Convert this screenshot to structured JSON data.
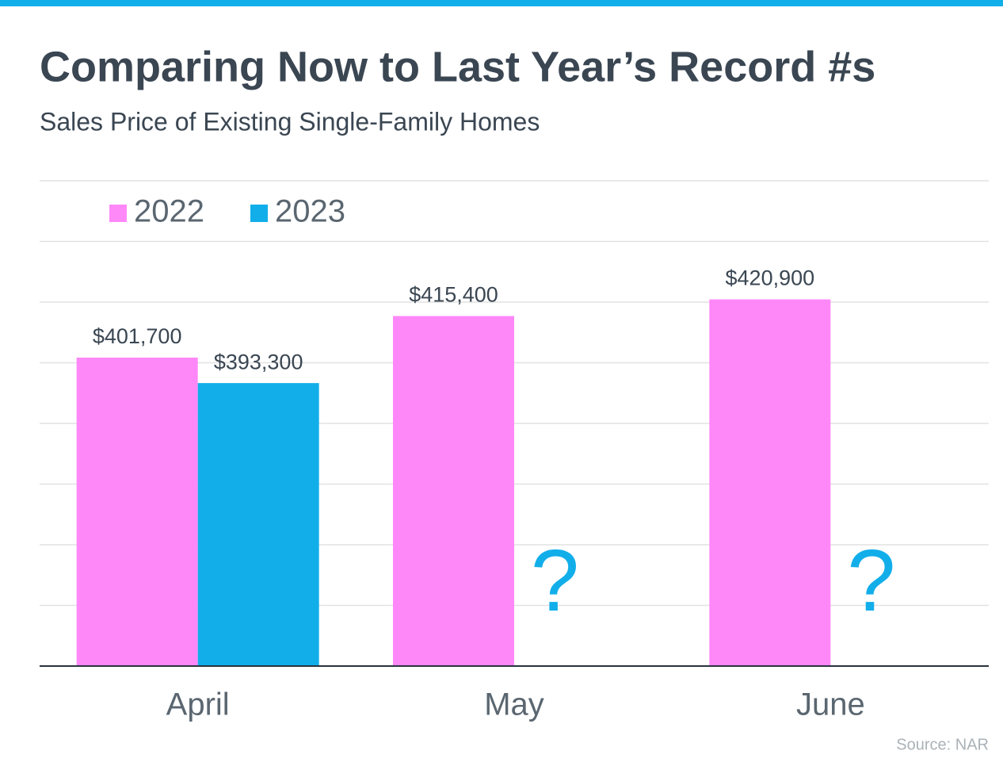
{
  "chart_data": {
    "type": "bar",
    "title": "Comparing Now to Last Year’s Record #s",
    "subtitle": "Sales Price of Existing Single-Family Homes",
    "categories": [
      "April",
      "May",
      "June"
    ],
    "series": [
      {
        "name": "2022",
        "color": "#ff88f8",
        "values": [
          401700,
          415400,
          420900
        ],
        "value_labels": [
          "$401,700",
          "$415,400",
          "$420,900"
        ]
      },
      {
        "name": "2023",
        "color": "#12aeea",
        "values": [
          393300,
          null,
          null
        ],
        "value_labels": [
          "$393,300",
          "?",
          "?"
        ]
      }
    ],
    "ylim": [
      300000,
      460000
    ],
    "yticks": [
      300000,
      320000,
      340000,
      360000,
      380000,
      400000,
      420000,
      440000,
      460000
    ],
    "grid": true,
    "legend": "top-left",
    "source": "Source: NAR"
  }
}
